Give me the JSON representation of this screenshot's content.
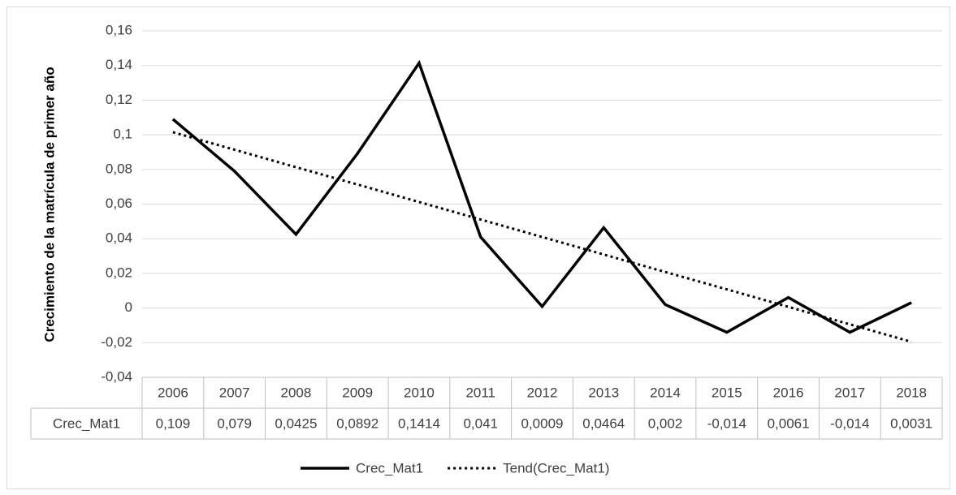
{
  "chart_data": {
    "type": "line",
    "y_label": "Crecimiento de la matrícula de primer año",
    "categories": [
      "2006",
      "2007",
      "2008",
      "2009",
      "2010",
      "2011",
      "2012",
      "2013",
      "2014",
      "2015",
      "2016",
      "2017",
      "2018"
    ],
    "series": [
      {
        "name": "Crec_Mat1",
        "color": "#000000",
        "style": "solid",
        "values": [
          0.109,
          0.079,
          0.0425,
          0.0892,
          0.1414,
          0.041,
          0.0009,
          0.0464,
          0.002,
          -0.014,
          0.0061,
          -0.014,
          0.0031
        ],
        "value_labels": [
          "0,109",
          "0,079",
          "0,0425",
          "0,0892",
          "0,1414",
          "0,041",
          "0,0009",
          "0,0464",
          "0,002",
          "-0,014",
          "0,0061",
          "-0,014",
          "0,0031"
        ]
      },
      {
        "name": "Tend(Crec_Mat1)",
        "color": "#000000",
        "style": "dotted",
        "values": [
          0.1015,
          0.0914,
          0.0813,
          0.0713,
          0.0612,
          0.0511,
          0.041,
          0.0309,
          0.0208,
          0.0108,
          0.0007,
          -0.0094,
          -0.0195
        ]
      }
    ],
    "ylim": [
      -0.04,
      0.16
    ],
    "yticks": [
      {
        "value": -0.04,
        "label": "-0,04"
      },
      {
        "value": -0.02,
        "label": "-0,02"
      },
      0,
      {
        "value": 0.02,
        "label": "0,02"
      },
      {
        "value": 0.04,
        "label": "0,04"
      },
      {
        "value": 0.06,
        "label": "0,06"
      },
      {
        "value": 0.08,
        "label": "0,08"
      },
      {
        "value": 0.1,
        "label": "0,1"
      },
      {
        "value": 0.12,
        "label": "0,12"
      },
      {
        "value": 0.14,
        "label": "0,14"
      },
      {
        "value": 0.16,
        "label": "0,16"
      }
    ],
    "grid": true,
    "data_table": true,
    "legend": "bottom"
  }
}
